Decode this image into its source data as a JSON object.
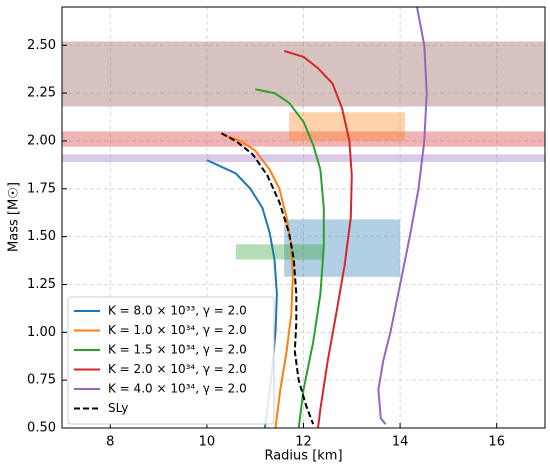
{
  "chart_data": {
    "type": "line",
    "xlabel": "Radius [km]",
    "ylabel": "Mass [M☉]",
    "xlim": [
      7,
      17
    ],
    "ylim": [
      0.5,
      2.7
    ],
    "xticks": [
      8,
      10,
      12,
      14,
      16
    ],
    "yticks": [
      {
        "value": 0.5,
        "label": "0.50"
      },
      {
        "value": 0.75,
        "label": "0.75"
      },
      {
        "value": 1.0,
        "label": "1.00"
      },
      {
        "value": 1.25,
        "label": "1.25"
      },
      {
        "value": 1.5,
        "label": "1.50"
      },
      {
        "value": 1.75,
        "label": "1.75"
      },
      {
        "value": 2.0,
        "label": "2.00"
      },
      {
        "value": 2.25,
        "label": "2.25"
      },
      {
        "value": 2.5,
        "label": "2.50"
      }
    ],
    "grid": true,
    "legend": "lower left",
    "bands": [
      {
        "y": [
          2.18,
          2.52
        ],
        "color": "#8c564b"
      },
      {
        "y": [
          1.97,
          2.05
        ],
        "color": "#d62728"
      },
      {
        "y": [
          1.89,
          1.93
        ],
        "color": "#9467bd"
      }
    ],
    "boxes": [
      {
        "x": [
          11.7,
          14.1
        ],
        "y": [
          2.0,
          2.15
        ],
        "color": "#ff7f0e"
      },
      {
        "x": [
          11.6,
          14.0
        ],
        "y": [
          1.29,
          1.59
        ],
        "color": "#1f77b4"
      },
      {
        "x": [
          10.6,
          12.4
        ],
        "y": [
          1.38,
          1.46
        ],
        "color": "#2ca02c"
      }
    ],
    "series": [
      {
        "name": "K = 8.0 × 10³³,  γ = 2.0",
        "color": "#1f77b4",
        "x": [
          10.0,
          10.6,
          10.9,
          11.15,
          11.3,
          11.4,
          11.45,
          11.42,
          11.35,
          11.25,
          11.2
        ],
        "values": [
          1.9,
          1.83,
          1.75,
          1.65,
          1.52,
          1.38,
          1.2,
          1.0,
          0.8,
          0.6,
          0.5
        ]
      },
      {
        "name": "K = 1.0 × 10³⁴,  γ = 2.0",
        "color": "#ff7f0e",
        "x": [
          10.35,
          10.7,
          11.0,
          11.3,
          11.5,
          11.65,
          11.75,
          11.78,
          11.75,
          11.65,
          11.52,
          11.42
        ],
        "values": [
          2.03,
          2.0,
          1.95,
          1.85,
          1.75,
          1.6,
          1.45,
          1.3,
          1.1,
          0.9,
          0.7,
          0.5
        ]
      },
      {
        "name": "K = 1.5 × 10³⁴,  γ = 2.0",
        "color": "#2ca02c",
        "x": [
          11.0,
          11.4,
          11.7,
          12.0,
          12.2,
          12.35,
          12.42,
          12.42,
          12.35,
          12.2,
          12.0,
          11.9
        ],
        "values": [
          2.27,
          2.25,
          2.2,
          2.1,
          1.98,
          1.85,
          1.65,
          1.45,
          1.2,
          0.95,
          0.7,
          0.5
        ]
      },
      {
        "name": "K = 2.0 × 10³⁴,  γ = 2.0",
        "color": "#d62728",
        "x": [
          11.6,
          12.0,
          12.3,
          12.6,
          12.8,
          12.95,
          13.0,
          12.98,
          12.85,
          12.68,
          12.5,
          12.35,
          12.3
        ],
        "values": [
          2.47,
          2.44,
          2.38,
          2.3,
          2.17,
          2.0,
          1.82,
          1.6,
          1.35,
          1.1,
          0.85,
          0.6,
          0.5
        ]
      },
      {
        "name": "K = 4.0 × 10³⁴,  γ = 2.0",
        "color": "#9467bd",
        "x": [
          14.35,
          14.5,
          14.55,
          14.5,
          14.38,
          14.2,
          14.0,
          13.8,
          13.65,
          13.55,
          13.6,
          13.7
        ],
        "values": [
          2.7,
          2.5,
          2.25,
          2.0,
          1.75,
          1.5,
          1.25,
          1.0,
          0.85,
          0.7,
          0.55,
          0.52
        ]
      },
      {
        "name": "SLy",
        "color": "#000000",
        "dashed": true,
        "x": [
          10.3,
          10.6,
          10.95,
          11.25,
          11.5,
          11.7,
          11.8,
          11.85,
          11.85,
          11.82,
          11.9,
          12.05,
          12.2
        ],
        "values": [
          2.04,
          2.0,
          1.93,
          1.82,
          1.68,
          1.52,
          1.38,
          1.2,
          1.05,
          0.9,
          0.75,
          0.62,
          0.52
        ]
      }
    ]
  }
}
